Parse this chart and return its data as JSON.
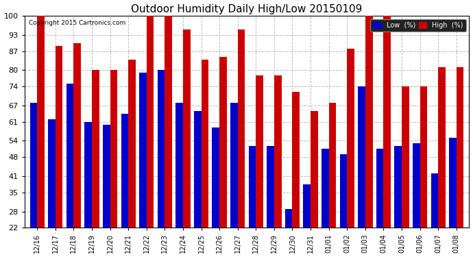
{
  "title": "Outdoor Humidity Daily High/Low 20150109",
  "copyright": "Copyright 2015 Cartronics.com",
  "dates": [
    "12/16",
    "12/17",
    "12/18",
    "12/19",
    "12/20",
    "12/21",
    "12/22",
    "12/23",
    "12/24",
    "12/25",
    "12/26",
    "12/27",
    "12/28",
    "12/29",
    "12/30",
    "12/31",
    "01/01",
    "01/02",
    "01/03",
    "01/04",
    "01/05",
    "01/06",
    "01/07",
    "01/08"
  ],
  "high": [
    100,
    89,
    90,
    80,
    80,
    84,
    100,
    100,
    95,
    84,
    85,
    95,
    78,
    78,
    72,
    65,
    68,
    88,
    100,
    100,
    74,
    74,
    81,
    81
  ],
  "low": [
    68,
    62,
    75,
    61,
    60,
    64,
    79,
    80,
    68,
    65,
    59,
    68,
    52,
    52,
    29,
    38,
    51,
    49,
    74,
    51,
    52,
    53,
    42,
    55
  ],
  "ymin": 22,
  "ymax": 100,
  "yticks": [
    22,
    28,
    35,
    41,
    48,
    54,
    61,
    67,
    74,
    80,
    87,
    93,
    100
  ],
  "bar_width": 0.4,
  "low_color": "#0000cc",
  "high_color": "#cc0000",
  "bg_color": "#ffffff",
  "grid_color": "#bbbbbb",
  "title_fontsize": 11,
  "tick_fontsize": 8,
  "xlabel_fontsize": 7
}
